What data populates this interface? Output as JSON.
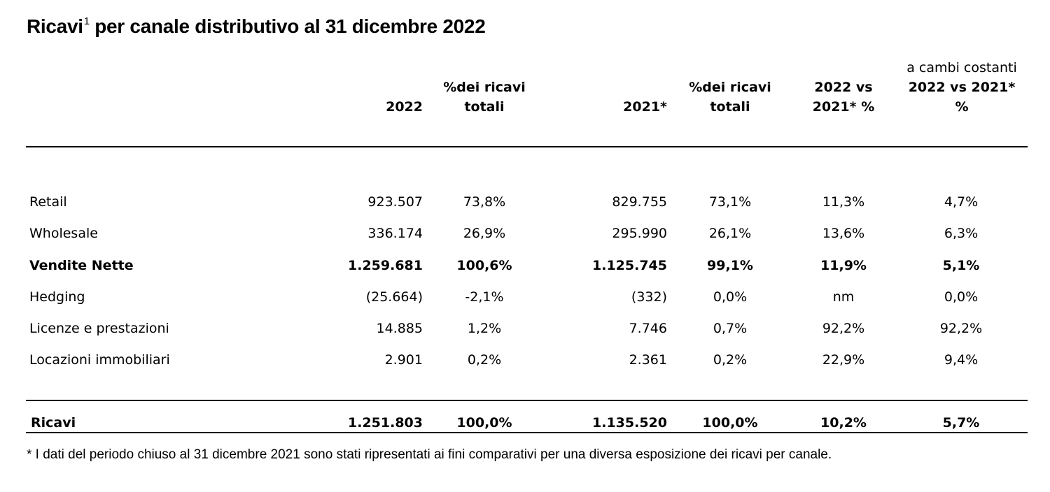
{
  "title": {
    "text": "Ricavi",
    "sup": "1",
    "rest": " per canale distributivo al 31 dicembre 2022"
  },
  "header": {
    "cambi_note": "a cambi costanti",
    "col_2022": "2022",
    "col_pct_2022_l1": "%dei ricavi",
    "col_pct_2022_l2": "totali",
    "col_2021": "2021*",
    "col_pct_2021_l1": "%dei ricavi",
    "col_pct_2021_l2": "totali",
    "col_chg_l1": "2022 vs",
    "col_chg_l2": "2021* %",
    "col_cc_l1": "2022 vs 2021*",
    "col_cc_l2": "%"
  },
  "rows": [
    {
      "label": "Retail",
      "v2022": "923.507",
      "p2022": "73,8%",
      "v2021": "829.755",
      "p2021": "73,1%",
      "chg": "11,3%",
      "cc": "4,7%"
    },
    {
      "label": "Wholesale",
      "v2022": "336.174",
      "p2022": "26,9%",
      "v2021": "295.990",
      "p2021": "26,1%",
      "chg": "13,6%",
      "cc": "6,3%"
    },
    {
      "label": "Vendite Nette",
      "v2022": "1.259.681",
      "p2022": "100,6%",
      "v2021": "1.125.745",
      "p2021": "99,1%",
      "chg": "11,9%",
      "cc": "5,1%"
    },
    {
      "label": "Hedging",
      "v2022": "(25.664)",
      "p2022": "-2,1%",
      "v2021": "(332)",
      "p2021": "0,0%",
      "chg": "nm",
      "cc": "0,0%"
    },
    {
      "label": "Licenze e prestazioni",
      "v2022": "14.885",
      "p2022": "1,2%",
      "v2021": "7.746",
      "p2021": "0,7%",
      "chg": "92,2%",
      "cc": "92,2%"
    },
    {
      "label": "Locazioni immobiliari",
      "v2022": "2.901",
      "p2022": "0,2%",
      "v2021": "2.361",
      "p2021": "0,2%",
      "chg": "22,9%",
      "cc": "9,4%"
    }
  ],
  "total": {
    "label": "Ricavi",
    "v2022": "1.251.803",
    "p2022": "100,0%",
    "v2021": "1.135.520",
    "p2021": "100,0%",
    "chg": "10,2%",
    "cc": "5,7%"
  },
  "footnote": "* I dati del periodo chiuso al 31 dicembre 2021 sono stati ripresentati ai fini comparativi per una diversa esposizione dei ricavi per canale."
}
